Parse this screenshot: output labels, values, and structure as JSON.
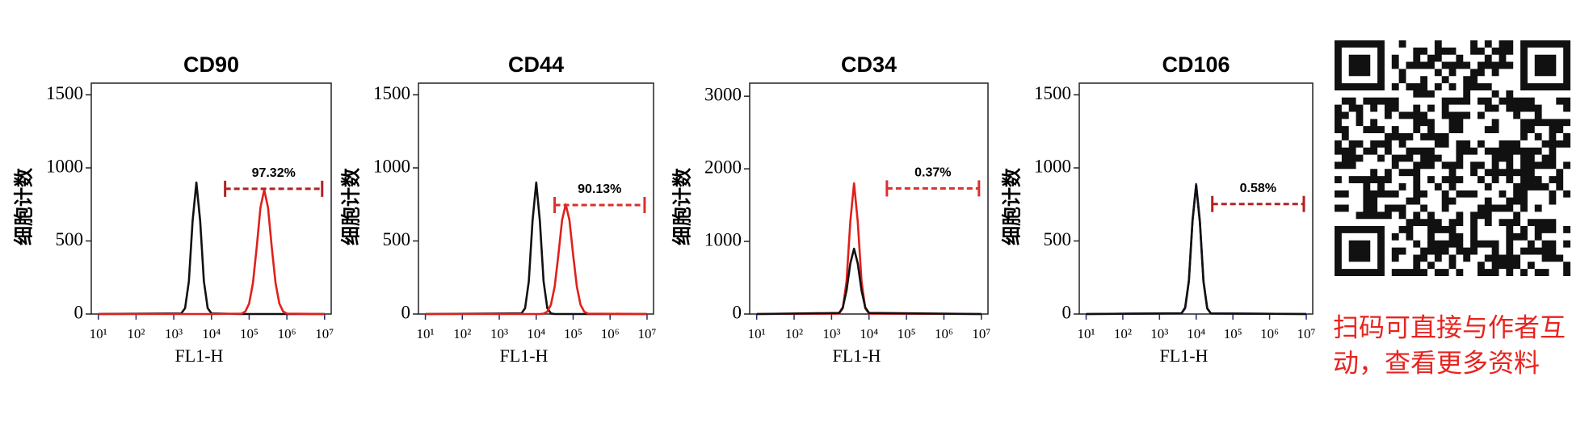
{
  "chart_data": [
    {
      "type": "line",
      "title": "CD90",
      "ylabel": "细胞计数",
      "xlabel": "FL1-H",
      "xscale": "log",
      "xlim": [
        6.5,
        15000000
      ],
      "ylim": [
        0,
        1580
      ],
      "xticks": [
        {
          "value": 10,
          "label": "10¹"
        },
        {
          "value": 100,
          "label": "10²"
        },
        {
          "value": 1000,
          "label": "10³"
        },
        {
          "value": 10000,
          "label": "10⁴"
        },
        {
          "value": 100000,
          "label": "10⁵"
        },
        {
          "value": 1000000,
          "label": "10⁶"
        },
        {
          "value": 10000000,
          "label": "10⁷"
        }
      ],
      "yticks": [
        0,
        500,
        1000,
        1500
      ],
      "x": [
        10,
        1585,
        1995,
        2512,
        3162,
        3981,
        5012,
        6310,
        7943,
        10000,
        63096,
        79433,
        100000,
        125893,
        158489,
        199526,
        251189,
        316228,
        398107,
        501187,
        630957,
        794328,
        1000000,
        10000000
      ],
      "series": [
        {
          "color": "#111111",
          "values": [
            0,
            4,
            40,
            224,
            636,
            900,
            636,
            224,
            40,
            4,
            0,
            0,
            0,
            0,
            0,
            0,
            0,
            0,
            0,
            0,
            0,
            0,
            0,
            0
          ]
        },
        {
          "color": "#e0201b",
          "values": [
            0,
            0,
            0,
            0,
            0,
            0,
            0,
            0,
            0,
            0,
            3,
            18,
            72,
            212,
            458,
            728,
            850,
            728,
            458,
            212,
            72,
            18,
            3,
            0
          ]
        }
      ],
      "gate": {
        "label": "97.32%",
        "x": [
          23000,
          10000000
        ],
        "y": 857,
        "color": "#b22222"
      }
    },
    {
      "type": "line",
      "title": "CD44",
      "ylabel": "细胞计数",
      "xlabel": "FL1-H",
      "xscale": "log",
      "xlim": [
        6.5,
        15000000
      ],
      "ylim": [
        0,
        1580
      ],
      "xticks": [
        {
          "value": 10,
          "label": "10¹"
        },
        {
          "value": 100,
          "label": "10²"
        },
        {
          "value": 1000,
          "label": "10³"
        },
        {
          "value": 10000,
          "label": "10⁴"
        },
        {
          "value": 100000,
          "label": "10⁵"
        },
        {
          "value": 1000000,
          "label": "10⁶"
        },
        {
          "value": 10000000,
          "label": "10⁷"
        }
      ],
      "yticks": [
        0,
        500,
        1000,
        1500
      ],
      "x": [
        10,
        3981,
        5012,
        6310,
        7943,
        10000,
        12589,
        15849,
        19953,
        25119,
        31623,
        39811,
        50119,
        63096,
        79433,
        100000,
        125893,
        158489,
        199526,
        251189,
        10000000
      ],
      "series": [
        {
          "color": "#111111",
          "values": [
            0,
            4,
            40,
            224,
            636,
            900,
            636,
            224,
            40,
            4,
            0,
            0,
            0,
            0,
            0,
            0,
            0,
            0,
            0,
            0,
            0
          ]
        },
        {
          "color": "#e0201b",
          "values": [
            0,
            0,
            0,
            0,
            0,
            0,
            0,
            3,
            16,
            64,
            187,
            404,
            643,
            750,
            643,
            404,
            187,
            64,
            16,
            3,
            0
          ]
        }
      ],
      "gate": {
        "label": "90.13%",
        "x": [
          31600,
          10000000
        ],
        "y": 746,
        "color": "#d9302b"
      }
    },
    {
      "type": "line",
      "title": "CD34",
      "ylabel": "细胞计数",
      "xlabel": "FL1-H",
      "xscale": "log",
      "xlim": [
        6.5,
        15000000
      ],
      "ylim": [
        0,
        3180
      ],
      "xticks": [
        {
          "value": 10,
          "label": "10¹"
        },
        {
          "value": 100,
          "label": "10²"
        },
        {
          "value": 1000,
          "label": "10³"
        },
        {
          "value": 10000,
          "label": "10⁴"
        },
        {
          "value": 100000,
          "label": "10⁵"
        },
        {
          "value": 1000000,
          "label": "10⁶"
        },
        {
          "value": 10000000,
          "label": "10⁷"
        }
      ],
      "yticks": [
        0,
        1000,
        2000,
        3000
      ],
      "x": [
        10,
        1585,
        1995,
        2512,
        3162,
        3981,
        5012,
        6310,
        7943,
        10000,
        10000000
      ],
      "series": [
        {
          "color": "#e0201b",
          "values": [
            0,
            7,
            79,
            448,
            1273,
            1800,
            1273,
            448,
            79,
            7,
            0
          ]
        },
        {
          "color": "#111111",
          "values": [
            0,
            15,
            90,
            324,
            697,
            900,
            697,
            324,
            90,
            15,
            0
          ]
        }
      ],
      "gate": {
        "label": "0.37%",
        "x": [
          30000,
          10000000
        ],
        "y": 1730,
        "color": "#d9302b"
      }
    },
    {
      "type": "line",
      "title": "CD106",
      "ylabel": "细胞计数",
      "xlabel": "FL1-H",
      "xscale": "log",
      "xlim": [
        6.5,
        15000000
      ],
      "ylim": [
        0,
        1580
      ],
      "xticks": [
        {
          "value": 10,
          "label": "10¹"
        },
        {
          "value": 100,
          "label": "10²"
        },
        {
          "value": 1000,
          "label": "10³"
        },
        {
          "value": 10000,
          "label": "10⁴"
        },
        {
          "value": 100000,
          "label": "10⁵"
        },
        {
          "value": 1000000,
          "label": "10⁶"
        },
        {
          "value": 10000000,
          "label": "10⁷"
        }
      ],
      "yticks": [
        0,
        500,
        1000,
        1500
      ],
      "x": [
        10,
        3981,
        5012,
        6310,
        7943,
        10000,
        12589,
        15849,
        19953,
        25119,
        10000000
      ],
      "series": [
        {
          "color": "#3b2f7a",
          "values": [
            0,
            4,
            40,
            224,
            636,
            890,
            636,
            224,
            40,
            4,
            0
          ]
        },
        {
          "color": "#111111",
          "values": [
            0,
            5,
            45,
            230,
            640,
            880,
            630,
            220,
            38,
            4,
            0
          ]
        }
      ],
      "gate": {
        "label": "0.58%",
        "x": [
          27500,
          10000000
        ],
        "y": 753,
        "color": "#b22222"
      }
    }
  ],
  "qr_caption": [
    "扫码可直接与作者互",
    "动，查看更多资料"
  ]
}
